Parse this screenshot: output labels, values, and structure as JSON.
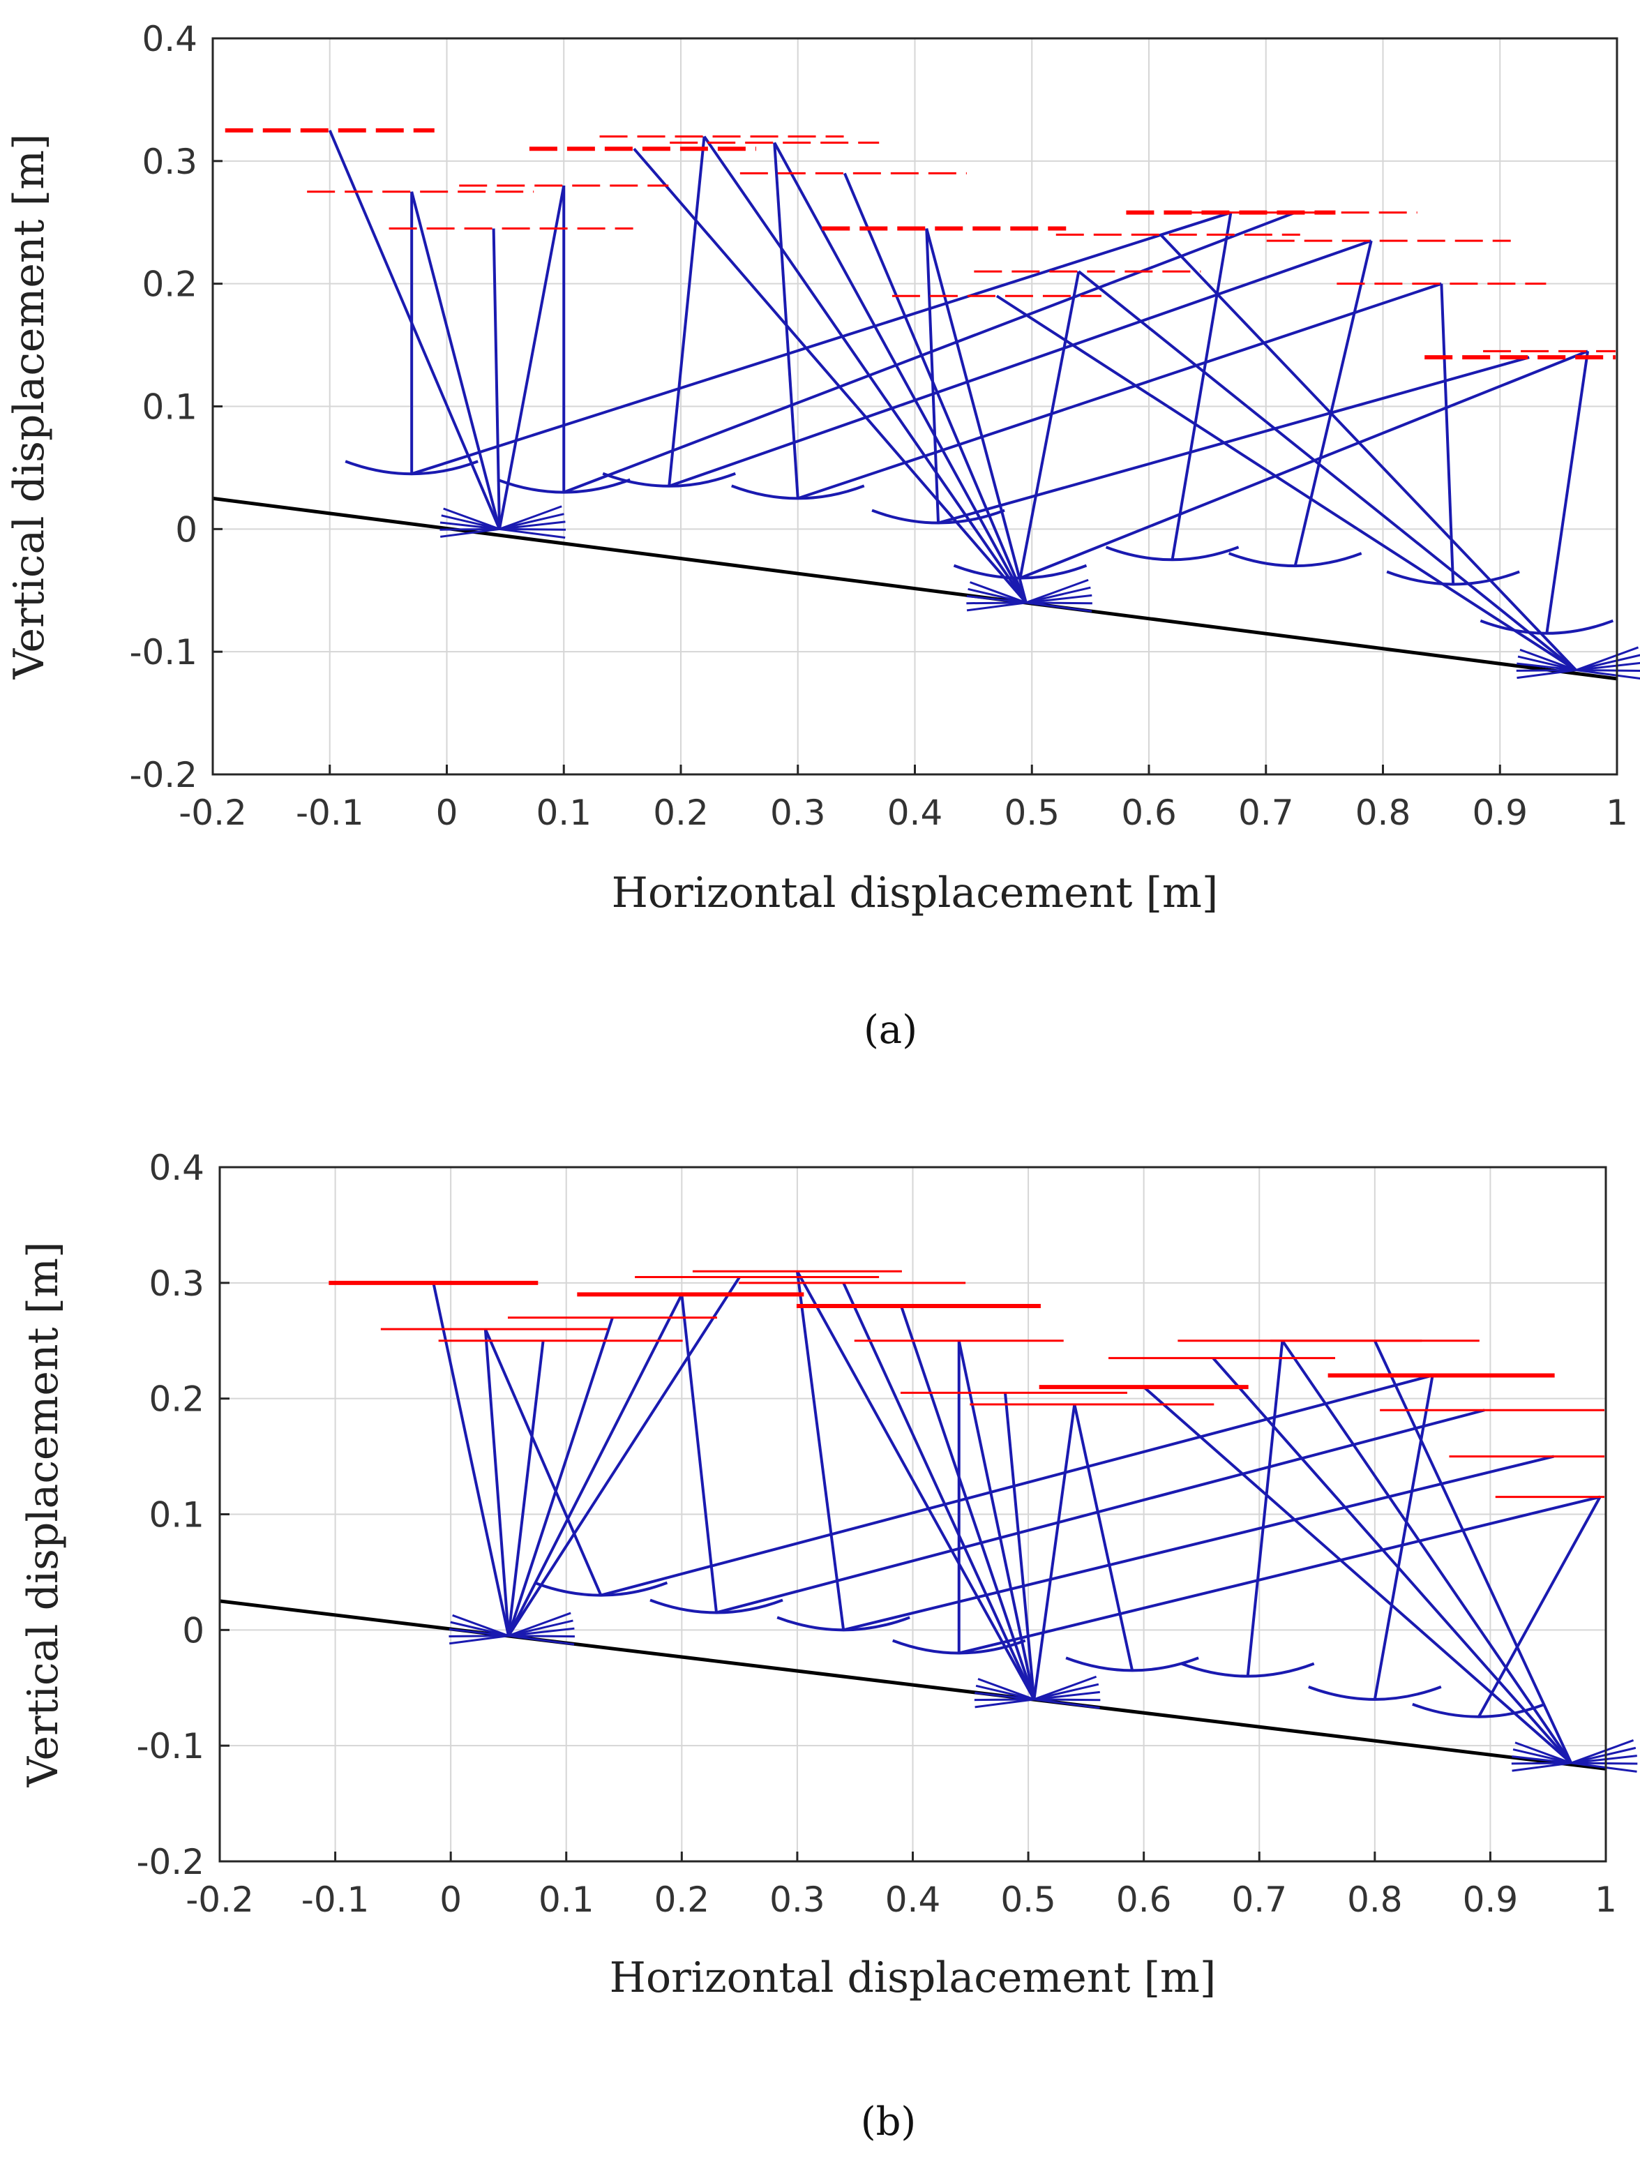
{
  "figure": {
    "panels": [
      "(a)",
      "(b)"
    ]
  },
  "chart_data": [
    {
      "id": "a",
      "panel_label": "(a)",
      "panel_letter": "a",
      "type": "line",
      "title": "",
      "xlabel": "Horizontal displacement [m]",
      "ylabel": "Vertical displacement [m]",
      "xlim": [
        -0.2,
        1
      ],
      "ylim": [
        -0.2,
        0.4
      ],
      "xticks": [
        -0.2,
        -0.1,
        0,
        0.1,
        0.2,
        0.3,
        0.4,
        0.5,
        0.6,
        0.7,
        0.8,
        0.9,
        1
      ],
      "xtick_labels": [
        "-0.2",
        "-0.1",
        "0",
        "0.1",
        "0.2",
        "0.3",
        "0.4",
        "0.5",
        "0.6",
        "0.7",
        "0.8",
        "0.9",
        "1"
      ],
      "yticks": [
        -0.2,
        -0.1,
        0,
        0.1,
        0.2,
        0.3,
        0.4
      ],
      "ytick_labels": [
        "-0.2",
        "-0.1",
        "0",
        "0.1",
        "0.2",
        "0.3",
        "0.4"
      ],
      "grid": true,
      "slope_line": {
        "x": [
          -0.2,
          1
        ],
        "y": [
          0.025,
          -0.122
        ],
        "color": "#000000"
      },
      "leg_color": "#1a1ab0",
      "hip_color": "#ff0000",
      "hip_style": "dashed",
      "hips": [
        {
          "x": -0.1,
          "y": 0.325
        },
        {
          "x": -0.03,
          "y": 0.275
        },
        {
          "x": 0.04,
          "y": 0.245
        },
        {
          "x": 0.1,
          "y": 0.28
        },
        {
          "x": 0.16,
          "y": 0.31
        },
        {
          "x": 0.22,
          "y": 0.32
        },
        {
          "x": 0.28,
          "y": 0.315
        },
        {
          "x": 0.34,
          "y": 0.29
        },
        {
          "x": 0.41,
          "y": 0.245
        },
        {
          "x": 0.47,
          "y": 0.19
        },
        {
          "x": 0.54,
          "y": 0.21
        },
        {
          "x": 0.61,
          "y": 0.24
        },
        {
          "x": 0.67,
          "y": 0.258
        },
        {
          "x": 0.725,
          "y": 0.258
        },
        {
          "x": 0.79,
          "y": 0.235
        },
        {
          "x": 0.85,
          "y": 0.2
        },
        {
          "x": 0.925,
          "y": 0.14
        },
        {
          "x": 0.975,
          "y": 0.145
        }
      ],
      "stance_feet": [
        {
          "x": 0.045,
          "y": 0.0
        },
        {
          "x": 0.045,
          "y": 0.0
        },
        {
          "x": 0.045,
          "y": 0.0
        },
        {
          "x": 0.045,
          "y": 0.0
        },
        {
          "x": 0.495,
          "y": -0.06
        },
        {
          "x": 0.495,
          "y": -0.06
        },
        {
          "x": 0.495,
          "y": -0.06
        },
        {
          "x": 0.495,
          "y": -0.06
        },
        {
          "x": 0.495,
          "y": -0.06
        },
        {
          "x": 0.965,
          "y": -0.115
        },
        {
          "x": 0.965,
          "y": -0.115
        },
        {
          "x": 0.965,
          "y": -0.115
        }
      ],
      "swing_arcs": [
        {
          "x": -0.03,
          "y": 0.045
        },
        {
          "x": 0.1,
          "y": 0.03
        },
        {
          "x": 0.19,
          "y": 0.035
        },
        {
          "x": 0.3,
          "y": 0.025
        },
        {
          "x": 0.42,
          "y": 0.005
        },
        {
          "x": 0.49,
          "y": -0.04
        },
        {
          "x": 0.62,
          "y": -0.025
        },
        {
          "x": 0.725,
          "y": -0.03
        },
        {
          "x": 0.86,
          "y": -0.045
        },
        {
          "x": 0.94,
          "y": -0.085
        }
      ]
    },
    {
      "id": "b",
      "panel_label": "(b)",
      "panel_letter": "b",
      "type": "line",
      "title": "",
      "xlabel": "Horizontal displacement [m]",
      "ylabel": "Vertical displacement [m]",
      "xlim": [
        -0.2,
        1
      ],
      "ylim": [
        -0.2,
        0.4
      ],
      "xticks": [
        -0.2,
        -0.1,
        0,
        0.1,
        0.2,
        0.3,
        0.4,
        0.5,
        0.6,
        0.7,
        0.8,
        0.9,
        1
      ],
      "xtick_labels": [
        "-0.2",
        "-0.1",
        "0",
        "0.1",
        "0.2",
        "0.3",
        "0.4",
        "0.5",
        "0.6",
        "0.7",
        "0.8",
        "0.9",
        "1"
      ],
      "yticks": [
        -0.2,
        -0.1,
        0,
        0.1,
        0.2,
        0.3,
        0.4
      ],
      "ytick_labels": [
        "-0.2",
        "-0.1",
        "0",
        "0.1",
        "0.2",
        "0.3",
        "0.4"
      ],
      "grid": true,
      "slope_line": {
        "x": [
          -0.2,
          1
        ],
        "y": [
          0.025,
          -0.12
        ],
        "color": "#000000"
      },
      "leg_color": "#1a1ab0",
      "hip_color": "#ff0000",
      "hip_style": "solid",
      "hips": [
        {
          "x": -0.015,
          "y": 0.3
        },
        {
          "x": 0.03,
          "y": 0.26
        },
        {
          "x": 0.08,
          "y": 0.25
        },
        {
          "x": 0.14,
          "y": 0.27
        },
        {
          "x": 0.2,
          "y": 0.29
        },
        {
          "x": 0.25,
          "y": 0.305
        },
        {
          "x": 0.3,
          "y": 0.31
        },
        {
          "x": 0.34,
          "y": 0.3
        },
        {
          "x": 0.39,
          "y": 0.28
        },
        {
          "x": 0.44,
          "y": 0.25
        },
        {
          "x": 0.48,
          "y": 0.205
        },
        {
          "x": 0.54,
          "y": 0.195
        },
        {
          "x": 0.6,
          "y": 0.21
        },
        {
          "x": 0.66,
          "y": 0.235
        },
        {
          "x": 0.72,
          "y": 0.25
        },
        {
          "x": 0.8,
          "y": 0.25
        },
        {
          "x": 0.85,
          "y": 0.22
        },
        {
          "x": 0.895,
          "y": 0.19
        },
        {
          "x": 0.955,
          "y": 0.15
        },
        {
          "x": 0.995,
          "y": 0.115
        }
      ],
      "stance_feet": [
        {
          "x": 0.05,
          "y": -0.005
        },
        {
          "x": 0.05,
          "y": -0.005
        },
        {
          "x": 0.05,
          "y": -0.005
        },
        {
          "x": 0.05,
          "y": -0.005
        },
        {
          "x": 0.05,
          "y": -0.005
        },
        {
          "x": 0.05,
          "y": -0.005
        },
        {
          "x": 0.505,
          "y": -0.06
        },
        {
          "x": 0.505,
          "y": -0.06
        },
        {
          "x": 0.505,
          "y": -0.06
        },
        {
          "x": 0.505,
          "y": -0.06
        },
        {
          "x": 0.505,
          "y": -0.06
        },
        {
          "x": 0.505,
          "y": -0.06
        },
        {
          "x": 0.97,
          "y": -0.115
        },
        {
          "x": 0.97,
          "y": -0.115
        },
        {
          "x": 0.97,
          "y": -0.115
        },
        {
          "x": 0.97,
          "y": -0.115
        }
      ],
      "swing_arcs": [
        {
          "x": 0.13,
          "y": 0.03
        },
        {
          "x": 0.23,
          "y": 0.015
        },
        {
          "x": 0.34,
          "y": 0.0
        },
        {
          "x": 0.44,
          "y": -0.02
        },
        {
          "x": 0.59,
          "y": -0.035
        },
        {
          "x": 0.69,
          "y": -0.04
        },
        {
          "x": 0.8,
          "y": -0.06
        },
        {
          "x": 0.89,
          "y": -0.075
        }
      ]
    }
  ]
}
